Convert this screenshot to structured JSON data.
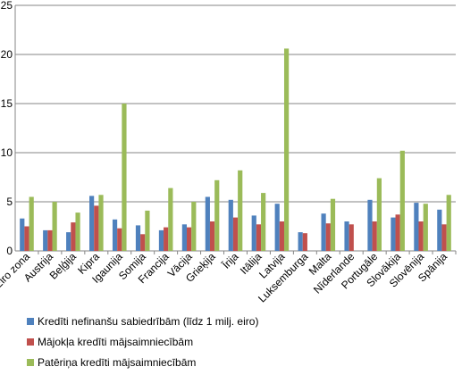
{
  "chart_data": {
    "type": "bar",
    "categories": [
      "Eiro zona",
      "Austrija",
      "Beļģija",
      "Kipra",
      "Igaunija",
      "Somija",
      "Francija",
      "Vācija",
      "Grieķija",
      "Īrija",
      "Itālija",
      "Latvija",
      "Luksemburga",
      "Malta",
      "Nīderlande",
      "Portugāle",
      "Slovākija",
      "Slovēnija",
      "Spānija"
    ],
    "series": [
      {
        "name": "Kredīti nefinanšu sabiedrībām (līdz 1 milj. eiro)",
        "color": "#4f81bd",
        "values": [
          3.3,
          2.1,
          1.9,
          5.6,
          3.2,
          2.6,
          2.1,
          2.7,
          5.5,
          5.2,
          3.6,
          4.8,
          1.9,
          3.8,
          3.0,
          5.2,
          3.4,
          4.9,
          4.2
        ]
      },
      {
        "name": "Mājokļa kredīti mājsaimniecībām",
        "color": "#c0504d",
        "values": [
          2.5,
          2.1,
          2.9,
          4.6,
          2.3,
          1.7,
          2.4,
          2.4,
          3.0,
          3.4,
          2.7,
          3.0,
          1.8,
          2.8,
          2.7,
          3.0,
          3.7,
          3.0,
          2.7
        ]
      },
      {
        "name": "Patēriņa kredīti mājsaimniecībām",
        "color": "#9bbb59",
        "values": [
          5.5,
          5.0,
          3.9,
          5.7,
          15.0,
          4.1,
          6.4,
          5.0,
          7.2,
          8.2,
          5.9,
          20.6,
          null,
          5.3,
          null,
          7.4,
          10.2,
          4.8,
          5.7
        ]
      }
    ],
    "ylim": [
      0,
      25
    ],
    "yticks": [
      0,
      5,
      10,
      15,
      20,
      25
    ],
    "grid": true,
    "legend_position": "bottom-left"
  }
}
